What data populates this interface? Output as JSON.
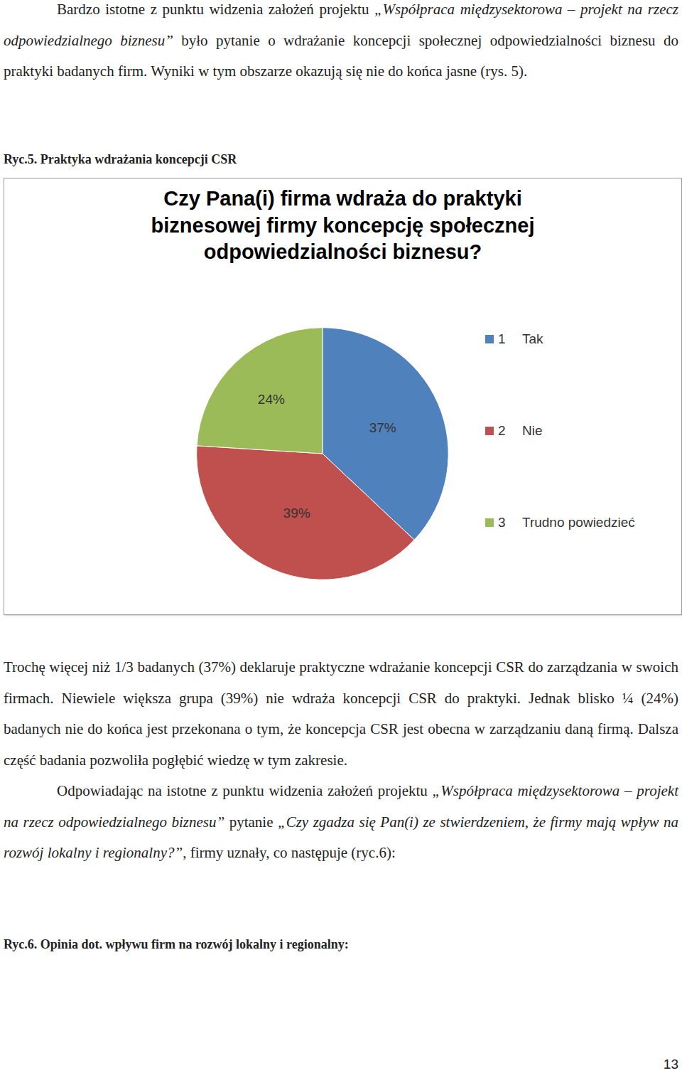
{
  "document": {
    "paragraphs_before": [
      {
        "indent": true,
        "runs": [
          {
            "text": "Bardzo istotne z punktu widzenia założeń projektu "
          },
          {
            "text": "„Współpraca międzysektorowa – projekt na rzecz odpowiedzialnego biznesu”",
            "italic": true
          },
          {
            "text": " było pytanie o wdrażanie koncepcji społecznej odpowiedzialności biznesu do praktyki badanych firm. Wyniki w tym obszarze okazują się nie do końca jasne (rys. 5)."
          }
        ]
      }
    ],
    "caption_1": "Ryc.5. Praktyka wdrażania koncepcji CSR",
    "paragraphs_after": [
      {
        "indent": false,
        "runs": [
          {
            "text": "Trochę więcej niż 1/3 badanych (37%) deklaruje praktyczne wdrażanie koncepcji CSR do zarządzania w swoich firmach. Niewiele większa grupa (39%) nie wdraża koncepcji CSR do praktyki. Jednak blisko ¼ (24%) badanych nie do końca jest przekonana o tym, że koncepcja CSR jest obecna w zarządzaniu daną firmą. Dalsza część badania pozwoliła pogłębić wiedzę w tym zakresie."
          }
        ]
      },
      {
        "indent": true,
        "runs": [
          {
            "text": "Odpowiadając na istotne z punktu widzenia założeń projektu "
          },
          {
            "text": "„Współpraca międzysektorowa – projekt na rzecz odpowiedzialnego biznesu”",
            "italic": true
          },
          {
            "text": " pytanie "
          },
          {
            "text": "„Czy zgadza się Pan(i) ze stwierdzeniem, że firmy mają wpływ na rozwój lokalny i regionalny?”",
            "italic": true
          },
          {
            "text": ", firmy uznały, co następuje (ryc.6):"
          }
        ]
      }
    ],
    "caption_2": "Ryc.6. Opinia dot. wpływu firm na rozwój lokalny i regionalny:",
    "page_number": 13
  },
  "chart_data": {
    "type": "pie",
    "title": "Czy Pana(i) firma wdraża do praktyki\nbiznesowej firmy koncepcję społecznej\nodpowiedzialności biznesu?",
    "categories": [
      "Tak",
      "Nie",
      "Trudno powiedzieć"
    ],
    "codes": [
      1,
      2,
      3
    ],
    "values": [
      37,
      39,
      24
    ],
    "value_labels": [
      "37%",
      "39%",
      "24%"
    ],
    "colors": [
      "#4f81bd",
      "#c0504d",
      "#9bbb59"
    ],
    "data_labels": true,
    "legend": "right"
  }
}
